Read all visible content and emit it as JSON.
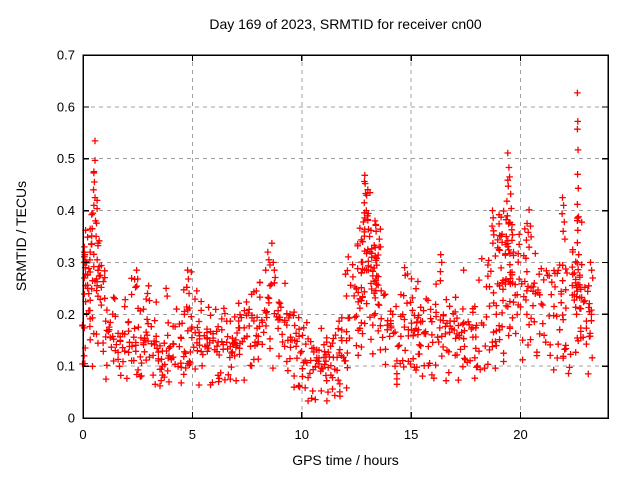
{
  "chart_data": {
    "type": "scatter",
    "title": "Day 169 of 2023, SRMTID for receiver cn00",
    "xlabel": "GPS time / hours",
    "ylabel": "SRMTID / TECUs",
    "xlim": [
      0,
      24
    ],
    "ylim": [
      0,
      0.7
    ],
    "xticks": [
      {
        "v": 0,
        "label": "0"
      },
      {
        "v": 5,
        "label": "5"
      },
      {
        "v": 10,
        "label": "10"
      },
      {
        "v": 15,
        "label": "15"
      },
      {
        "v": 20,
        "label": "20"
      }
    ],
    "yticks": [
      {
        "v": 0.0,
        "label": "0"
      },
      {
        "v": 0.1,
        "label": "0.1"
      },
      {
        "v": 0.2,
        "label": "0.2"
      },
      {
        "v": 0.3,
        "label": "0.3"
      },
      {
        "v": 0.4,
        "label": "0.4"
      },
      {
        "v": 0.5,
        "label": "0.5"
      },
      {
        "v": 0.6,
        "label": "0.6"
      },
      {
        "v": 0.7,
        "label": "0.7"
      }
    ],
    "grid": {
      "style": "dashed",
      "color": "#a0a0a0"
    },
    "axis_color": "#000000",
    "marker": {
      "shape": "plus",
      "color": "#ff0000",
      "size": 7
    },
    "legend": null,
    "data_start_hour": 0,
    "data_end_hour": 23.35,
    "envelope": [
      [
        0.0,
        0.22,
        0.1
      ],
      [
        0.3,
        0.28,
        0.11
      ],
      [
        0.55,
        0.32,
        0.13
      ],
      [
        0.8,
        0.22,
        0.09
      ],
      [
        1.2,
        0.17,
        0.06
      ],
      [
        1.8,
        0.15,
        0.05
      ],
      [
        2.4,
        0.17,
        0.07
      ],
      [
        3.0,
        0.15,
        0.06
      ],
      [
        3.6,
        0.13,
        0.05
      ],
      [
        4.2,
        0.13,
        0.05
      ],
      [
        4.8,
        0.17,
        0.08
      ],
      [
        5.3,
        0.15,
        0.06
      ],
      [
        6.0,
        0.13,
        0.05
      ],
      [
        6.8,
        0.13,
        0.05
      ],
      [
        7.5,
        0.16,
        0.06
      ],
      [
        8.3,
        0.2,
        0.08
      ],
      [
        8.8,
        0.21,
        0.08
      ],
      [
        9.4,
        0.16,
        0.06
      ],
      [
        10.0,
        0.12,
        0.05
      ],
      [
        10.6,
        0.1,
        0.05
      ],
      [
        11.2,
        0.1,
        0.05
      ],
      [
        11.8,
        0.13,
        0.06
      ],
      [
        12.4,
        0.22,
        0.09
      ],
      [
        12.9,
        0.29,
        0.12
      ],
      [
        13.4,
        0.26,
        0.1
      ],
      [
        13.9,
        0.2,
        0.08
      ],
      [
        14.3,
        0.14,
        0.06
      ],
      [
        14.8,
        0.19,
        0.08
      ],
      [
        15.4,
        0.15,
        0.06
      ],
      [
        16.0,
        0.16,
        0.07
      ],
      [
        16.5,
        0.18,
        0.07
      ],
      [
        17.2,
        0.15,
        0.06
      ],
      [
        17.9,
        0.16,
        0.06
      ],
      [
        18.5,
        0.21,
        0.08
      ],
      [
        19.0,
        0.26,
        0.1
      ],
      [
        19.5,
        0.3,
        0.11
      ],
      [
        20.0,
        0.22,
        0.08
      ],
      [
        20.5,
        0.26,
        0.09
      ],
      [
        21.0,
        0.21,
        0.07
      ],
      [
        21.6,
        0.23,
        0.09
      ],
      [
        22.1,
        0.21,
        0.08
      ],
      [
        22.65,
        0.26,
        0.12
      ],
      [
        23.0,
        0.19,
        0.06
      ],
      [
        23.35,
        0.2,
        0.06
      ]
    ],
    "notable_points": [
      [
        0.05,
        0.3
      ],
      [
        0.08,
        0.315
      ],
      [
        0.1,
        0.29
      ],
      [
        0.06,
        0.27
      ],
      [
        0.12,
        0.255
      ],
      [
        0.05,
        0.12
      ],
      [
        0.08,
        0.105
      ],
      [
        0.1,
        0.135
      ],
      [
        0.5,
        0.475
      ],
      [
        0.52,
        0.455
      ],
      [
        0.48,
        0.44
      ],
      [
        0.55,
        0.425
      ],
      [
        0.5,
        0.41
      ],
      [
        0.45,
        0.395
      ],
      [
        0.57,
        0.38
      ],
      [
        0.42,
        0.365
      ],
      [
        0.6,
        0.35
      ],
      [
        0.38,
        0.335
      ],
      [
        0.33,
        0.32
      ],
      [
        0.65,
        0.305
      ],
      [
        1.05,
        0.075
      ],
      [
        2.45,
        0.285
      ],
      [
        2.5,
        0.268
      ],
      [
        2.4,
        0.252
      ],
      [
        3.0,
        0.255
      ],
      [
        2.95,
        0.24
      ],
      [
        3.3,
        0.065
      ],
      [
        3.8,
        0.25
      ],
      [
        3.85,
        0.235
      ],
      [
        4.78,
        0.285
      ],
      [
        4.82,
        0.268
      ],
      [
        4.75,
        0.252
      ],
      [
        4.85,
        0.24
      ],
      [
        5.2,
        0.245
      ],
      [
        6.2,
        0.07
      ],
      [
        7.0,
        0.072
      ],
      [
        8.45,
        0.32
      ],
      [
        8.5,
        0.305
      ],
      [
        8.55,
        0.295
      ],
      [
        8.35,
        0.285
      ],
      [
        8.7,
        0.3
      ],
      [
        8.75,
        0.285
      ],
      [
        9.9,
        0.06
      ],
      [
        10.45,
        0.038
      ],
      [
        10.5,
        0.052
      ],
      [
        11.15,
        0.033
      ],
      [
        11.2,
        0.05
      ],
      [
        11.75,
        0.042
      ],
      [
        12.05,
        0.058
      ],
      [
        12.88,
        0.468
      ],
      [
        12.9,
        0.452
      ],
      [
        12.92,
        0.433
      ],
      [
        12.86,
        0.415
      ],
      [
        12.95,
        0.4
      ],
      [
        13.0,
        0.39
      ],
      [
        12.82,
        0.378
      ],
      [
        13.05,
        0.364
      ],
      [
        13.1,
        0.35
      ],
      [
        12.78,
        0.34
      ],
      [
        13.35,
        0.38
      ],
      [
        13.4,
        0.36
      ],
      [
        13.55,
        0.345
      ],
      [
        13.6,
        0.33
      ],
      [
        14.35,
        0.065
      ],
      [
        14.7,
        0.29
      ],
      [
        14.73,
        0.275
      ],
      [
        16.35,
        0.315
      ],
      [
        16.4,
        0.3
      ],
      [
        16.6,
        0.072
      ],
      [
        17.4,
        0.285
      ],
      [
        18.72,
        0.4
      ],
      [
        18.75,
        0.386
      ],
      [
        18.7,
        0.37
      ],
      [
        18.78,
        0.353
      ],
      [
        18.74,
        0.337
      ],
      [
        19.42,
        0.511
      ],
      [
        19.47,
        0.483
      ],
      [
        19.5,
        0.465
      ],
      [
        19.44,
        0.447
      ],
      [
        19.55,
        0.432
      ],
      [
        19.38,
        0.418
      ],
      [
        19.58,
        0.404
      ],
      [
        19.4,
        0.39
      ],
      [
        19.52,
        0.377
      ],
      [
        19.6,
        0.363
      ],
      [
        19.35,
        0.35
      ],
      [
        20.3,
        0.375
      ],
      [
        20.35,
        0.358
      ],
      [
        20.27,
        0.343
      ],
      [
        21.92,
        0.425
      ],
      [
        21.97,
        0.41
      ],
      [
        21.9,
        0.394
      ],
      [
        22.0,
        0.378
      ],
      [
        21.95,
        0.36
      ],
      [
        22.03,
        0.345
      ],
      [
        22.6,
        0.627
      ],
      [
        22.62,
        0.572
      ],
      [
        22.6,
        0.557
      ],
      [
        22.63,
        0.517
      ],
      [
        22.61,
        0.47
      ],
      [
        22.64,
        0.443
      ],
      [
        22.6,
        0.412
      ],
      [
        22.65,
        0.388
      ],
      [
        22.62,
        0.362
      ],
      [
        22.6,
        0.338
      ],
      [
        22.66,
        0.315
      ],
      [
        23.1,
        0.085
      ],
      [
        23.2,
        0.3
      ],
      [
        23.25,
        0.285
      ],
      [
        23.3,
        0.27
      ]
    ],
    "sampling": {
      "seed": 169,
      "step": 0.05,
      "x_jitter": 0.05
    }
  }
}
